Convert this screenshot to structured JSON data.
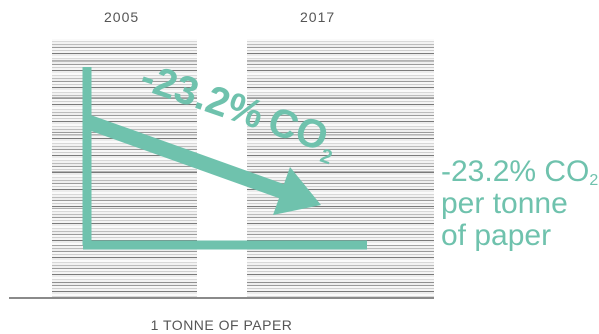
{
  "years": {
    "left": "2005",
    "right": "2017"
  },
  "overlay": {
    "percent": "-23.2%",
    "co": "CO",
    "sub": "2"
  },
  "side": {
    "line1_main": "-23.2% CO",
    "line1_sub": "2",
    "line2": "per tonne",
    "line3": "of paper"
  },
  "base": {
    "label": "1 TONNE OF PAPER"
  },
  "colors": {
    "accent": "#6fc2ad",
    "text_gray": "#555555",
    "baseline": "#8a8a8a"
  }
}
